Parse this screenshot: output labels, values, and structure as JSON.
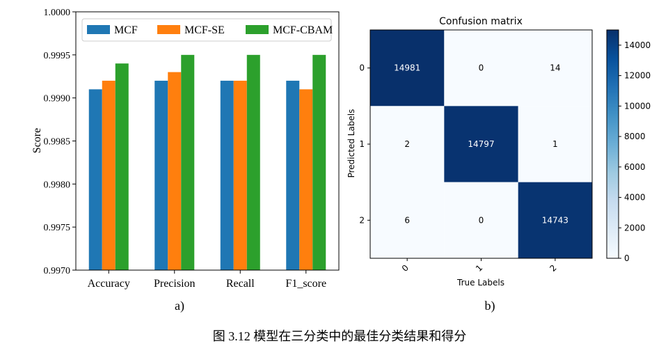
{
  "caption": "图 3.12  模型在三分类中的最佳分类结果和得分",
  "chart_data": [
    {
      "type": "bar",
      "panel_label": "a)",
      "title": "",
      "xlabel": "",
      "ylabel": "Score",
      "ylim": [
        0.997,
        1.0
      ],
      "yticks": [
        "0.9970",
        "0.9975",
        "0.9980",
        "0.9985",
        "0.9990",
        "0.9995",
        "1.0000"
      ],
      "grid": false,
      "legend_position": "top",
      "categories": [
        "Accuracy",
        "Precision",
        "Recall",
        "F1_score"
      ],
      "series": [
        {
          "name": "MCF",
          "color": "#1f77b4",
          "values": [
            0.9991,
            0.9992,
            0.9992,
            0.9992
          ]
        },
        {
          "name": "MCF-SE",
          "color": "#ff7f0e",
          "values": [
            0.9992,
            0.9993,
            0.9992,
            0.9991
          ]
        },
        {
          "name": "MCF-CBAM",
          "color": "#2ca02c",
          "values": [
            0.9994,
            0.9995,
            0.9995,
            0.9995
          ]
        }
      ]
    },
    {
      "type": "heatmap",
      "panel_label": "b)",
      "title": "Confusion matrix",
      "xlabel": "True Labels",
      "ylabel": "Predicted Labels",
      "x_ticks": [
        "0",
        "1",
        "2"
      ],
      "y_ticks": [
        "0",
        "1",
        "2"
      ],
      "matrix": [
        [
          14981,
          0,
          14
        ],
        [
          2,
          14797,
          1
        ],
        [
          6,
          0,
          14743
        ]
      ],
      "colormap": "Blues",
      "colorbar_range": [
        0,
        15000
      ],
      "colorbar_ticks": [
        "0",
        "2000",
        "4000",
        "6000",
        "8000",
        "10000",
        "12000",
        "14000"
      ]
    }
  ]
}
